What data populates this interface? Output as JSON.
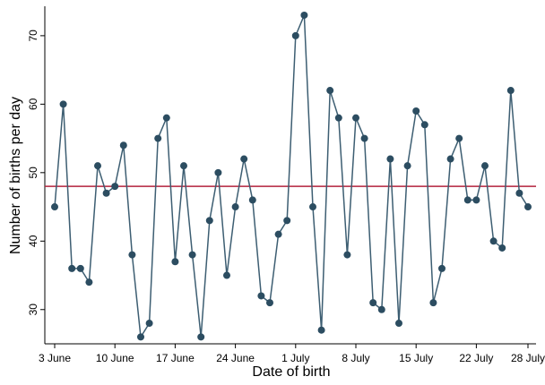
{
  "chart_data": {
    "type": "line",
    "x": [
      "3 June",
      "4 June",
      "5 June",
      "6 June",
      "7 June",
      "8 June",
      "9 June",
      "10 June",
      "11 June",
      "12 June",
      "13 June",
      "14 June",
      "15 June",
      "16 June",
      "17 June",
      "18 June",
      "19 June",
      "20 June",
      "21 June",
      "22 June",
      "23 June",
      "24 June",
      "25 June",
      "26 June",
      "27 June",
      "28 June",
      "29 June",
      "30 June",
      "1 July",
      "2 July",
      "3 July",
      "4 July",
      "5 July",
      "6 July",
      "7 July",
      "8 July",
      "9 July",
      "10 July",
      "11 July",
      "12 July",
      "13 July",
      "14 July",
      "15 July",
      "16 July",
      "17 July",
      "18 July",
      "19 July",
      "20 July",
      "21 July",
      "22 July",
      "23 July",
      "24 July",
      "25 July",
      "26 July",
      "27 July",
      "28 July"
    ],
    "series": [
      {
        "name": "Births",
        "color": "#3d5e72",
        "values": [
          45,
          60,
          36,
          36,
          34,
          51,
          47,
          48,
          54,
          38,
          26,
          28,
          55,
          58,
          37,
          51,
          38,
          26,
          43,
          50,
          35,
          45,
          52,
          46,
          32,
          31,
          41,
          43,
          70,
          73,
          45,
          27,
          62,
          58,
          38,
          58,
          55,
          31,
          30,
          52,
          28,
          51,
          59,
          57,
          31,
          36,
          52,
          55,
          46,
          46,
          51,
          40,
          39,
          62,
          47,
          45
        ]
      }
    ],
    "xticks": [
      "3 June",
      "10 June",
      "17 June",
      "24 June",
      "1 July",
      "8 July",
      "15 July",
      "22 July",
      "28 July"
    ],
    "ylim": [
      25,
      74.3
    ],
    "yticks": [
      30,
      40,
      50,
      60,
      70
    ],
    "hline": {
      "value": 48,
      "color": "#b3223b"
    },
    "xlabel": "Date of birth",
    "ylabel": "Number of births per day"
  }
}
